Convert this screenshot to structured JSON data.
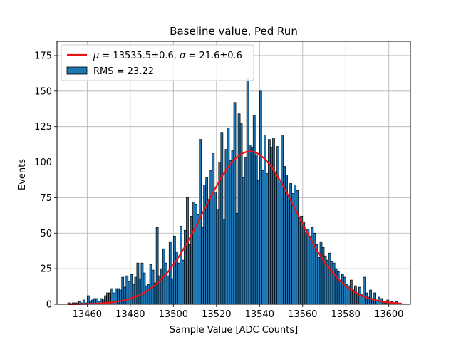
{
  "chart_data": {
    "type": "bar",
    "title": "Baseline value, Ped Run",
    "xlabel": "Sample Value [ADC Counts]",
    "ylabel": "Events",
    "xlim": [
      13446,
      13610
    ],
    "ylim": [
      0,
      185
    ],
    "xticks": [
      13460,
      13480,
      13500,
      13520,
      13540,
      13560,
      13580,
      13600
    ],
    "yticks": [
      0,
      25,
      50,
      75,
      100,
      125,
      150,
      175
    ],
    "grid": true,
    "legend_position": "top-left",
    "bin_start": 13451,
    "bin_width": 1,
    "counts": [
      1,
      0,
      1,
      1,
      1,
      2,
      1,
      3,
      1,
      6,
      2,
      3,
      4,
      4,
      2,
      4,
      3,
      6,
      8,
      8,
      11,
      8,
      11,
      11,
      10,
      19,
      12,
      20,
      16,
      21,
      14,
      19,
      29,
      18,
      29,
      22,
      13,
      14,
      28,
      24,
      15,
      54,
      20,
      25,
      39,
      29,
      20,
      44,
      18,
      48,
      37,
      29,
      55,
      31,
      52,
      75,
      42,
      62,
      72,
      70,
      63,
      116,
      54,
      84,
      89,
      74,
      94,
      106,
      79,
      67,
      100,
      121,
      60,
      109,
      124,
      101,
      108,
      142,
      64,
      134,
      127,
      89,
      103,
      159,
      112,
      110,
      133,
      105,
      87,
      150,
      94,
      119,
      92,
      116,
      110,
      117,
      93,
      111,
      86,
      119,
      97,
      91,
      76,
      85,
      78,
      84,
      80,
      60,
      62,
      58,
      51,
      53,
      48,
      54,
      50,
      42,
      33,
      44,
      40,
      34,
      31,
      36,
      30,
      29,
      25,
      23,
      17,
      21,
      19,
      14,
      13,
      17,
      10,
      13,
      8,
      12,
      7,
      19,
      8,
      5,
      10,
      4,
      8,
      3,
      5,
      4,
      2,
      1,
      3,
      1,
      2,
      1,
      2
    ],
    "bar_color": "#1f77b4",
    "bar_edge_color": "#000000",
    "fit": {
      "mu": 13535.5,
      "sigma": 21.6,
      "amplitude": 107.5,
      "x_range": [
        13451,
        13606
      ],
      "color": "#ee1111"
    },
    "legend": [
      {
        "type": "line",
        "color": "#ee1111",
        "label": "$\\mu = 13535.5\\pm0.6$, $\\sigma = 21.6\\pm0.6$",
        "parts": [
          "μ",
          " = 13535.5±0.6, ",
          "σ",
          " = 21.6±0.6"
        ]
      },
      {
        "type": "bar",
        "color": "#1f77b4",
        "label": "RMS = 23.22"
      }
    ]
  }
}
